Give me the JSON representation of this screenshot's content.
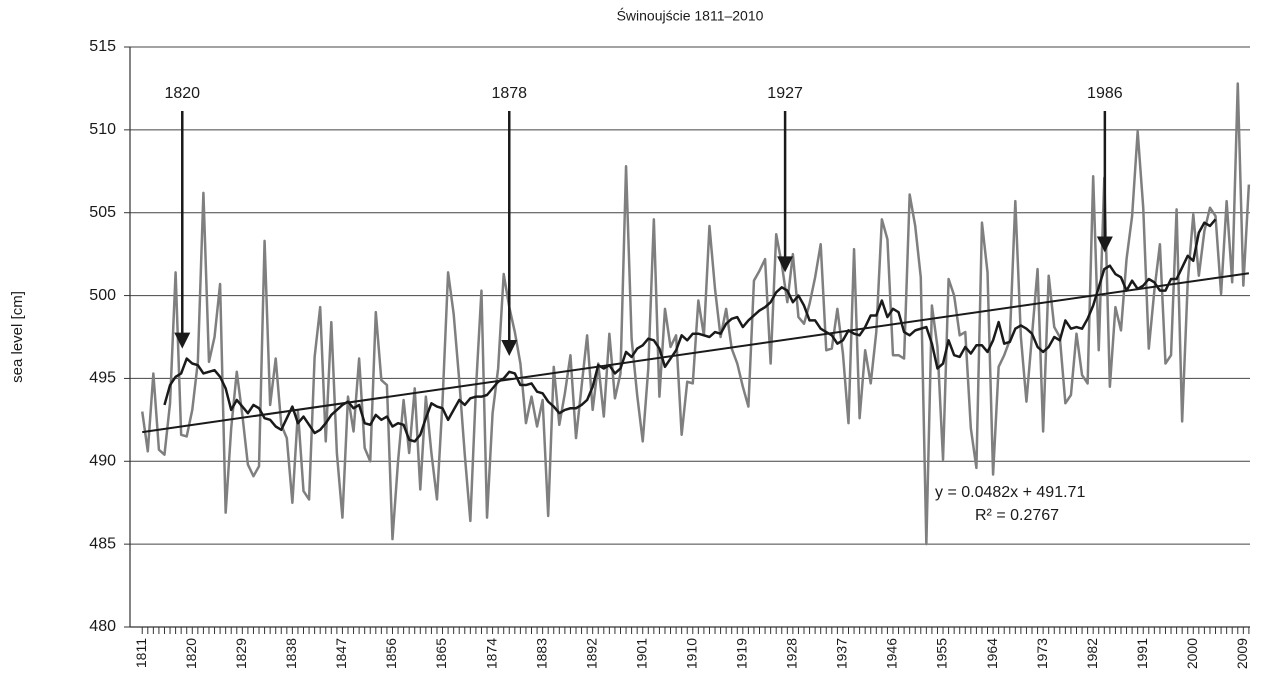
{
  "chart_data": {
    "type": "line",
    "title": "Świnoujście 1811–2010",
    "y_label": "sea level [cm]",
    "x": [
      1811,
      1812,
      1813,
      1814,
      1815,
      1816,
      1817,
      1818,
      1819,
      1820,
      1821,
      1822,
      1823,
      1824,
      1825,
      1826,
      1827,
      1828,
      1829,
      1830,
      1831,
      1832,
      1833,
      1834,
      1835,
      1836,
      1837,
      1838,
      1839,
      1840,
      1841,
      1842,
      1843,
      1844,
      1845,
      1846,
      1847,
      1848,
      1849,
      1850,
      1851,
      1852,
      1853,
      1854,
      1855,
      1856,
      1857,
      1858,
      1859,
      1860,
      1861,
      1862,
      1863,
      1864,
      1865,
      1866,
      1867,
      1868,
      1869,
      1870,
      1871,
      1872,
      1873,
      1874,
      1875,
      1876,
      1877,
      1878,
      1879,
      1880,
      1881,
      1882,
      1883,
      1884,
      1885,
      1886,
      1887,
      1888,
      1889,
      1890,
      1891,
      1892,
      1893,
      1894,
      1895,
      1896,
      1897,
      1898,
      1899,
      1900,
      1901,
      1902,
      1903,
      1904,
      1905,
      1906,
      1907,
      1908,
      1909,
      1910,
      1911,
      1912,
      1913,
      1914,
      1915,
      1916,
      1917,
      1918,
      1919,
      1920,
      1921,
      1922,
      1923,
      1924,
      1925,
      1926,
      1927,
      1928,
      1929,
      1930,
      1931,
      1932,
      1933,
      1934,
      1935,
      1936,
      1937,
      1938,
      1939,
      1940,
      1941,
      1942,
      1943,
      1944,
      1945,
      1946,
      1947,
      1948,
      1949,
      1950,
      1951,
      1952,
      1953,
      1954,
      1955,
      1956,
      1957,
      1958,
      1959,
      1960,
      1961,
      1962,
      1963,
      1964,
      1965,
      1966,
      1967,
      1968,
      1969,
      1970,
      1971,
      1972,
      1973,
      1974,
      1975,
      1976,
      1977,
      1978,
      1979,
      1980,
      1981,
      1982,
      1983,
      1984,
      1985,
      1986,
      1987,
      1988,
      1989,
      1990,
      1991,
      1992,
      1993,
      1994,
      1995,
      1996,
      1997,
      1998,
      1999,
      2000,
      2001,
      2002,
      2003,
      2004,
      2005,
      2006,
      2007,
      2008,
      2009,
      2010
    ],
    "series": [
      {
        "color": "#7f7f7f",
        "width": 2.5,
        "values": [
          493,
          490.6,
          495.3,
          490.7,
          490.4,
          493.5,
          501.4,
          491.6,
          491.5,
          493.1,
          496,
          506.2,
          496,
          497.5,
          500.7,
          486.9,
          492,
          495.4,
          492.8,
          489.8,
          489.1,
          489.7,
          503.3,
          493.4,
          496.2,
          492.2,
          491.4,
          487.5,
          493,
          488.2,
          487.7,
          496.3,
          499.3,
          491.2,
          498.4,
          490.5,
          486.6,
          493.9,
          491.8,
          496.2,
          490.8,
          490,
          499,
          494.9,
          494.6,
          485.3,
          490,
          493.7,
          490.5,
          494.4,
          488.3,
          493.9,
          490.5,
          487.7,
          493.6,
          501.4,
          498.9,
          494.9,
          490.4,
          486.4,
          494.3,
          500.3,
          486.6,
          492.9,
          495.6,
          501.3,
          499.3,
          497.8,
          495.9,
          492.3,
          493.9,
          492.1,
          493.7,
          486.7,
          495.7,
          492.2,
          494.1,
          496.4,
          491.4,
          494.5,
          497.6,
          493.1,
          495.9,
          492.7,
          497.7,
          493.8,
          495.3,
          507.8,
          497.4,
          494,
          491.2,
          495.6,
          504.6,
          493.9,
          499.2,
          496.9,
          497.6,
          491.6,
          494.8,
          494.7,
          499.7,
          497.6,
          504.2,
          500.4,
          497.5,
          499.2,
          496.8,
          495.9,
          494.5,
          493.3,
          500.9,
          501.5,
          502.2,
          495.9,
          503.7,
          501.9,
          499.6,
          502.5,
          498.7,
          498.3,
          499.5,
          501.1,
          503.1,
          496.7,
          496.8,
          499.2,
          496.5,
          492.3,
          502.8,
          492.6,
          496.7,
          494.7,
          497.8,
          504.6,
          503.4,
          496.4,
          496.4,
          496.2,
          506.1,
          504.2,
          501.1,
          485,
          499.4,
          496.9,
          490.1,
          501,
          500,
          497.6,
          497.8,
          492,
          489.6,
          504.4,
          501.4,
          489.2,
          495.7,
          496.4,
          497.3,
          505.7,
          497.5,
          493.6,
          497.6,
          501.6,
          491.8,
          501.2,
          498.1,
          497.5,
          493.5,
          494,
          497.7,
          495.2,
          494.7,
          507.2,
          496.7,
          507.1,
          494.5,
          499.3,
          497.9,
          502.2,
          504.8,
          509.9,
          505.3,
          496.8,
          500.3,
          503.1,
          495.9,
          496.4,
          505.2,
          492.4,
          500.8,
          504.9,
          501.2,
          503.9,
          505.3,
          504.8,
          500.1,
          505.7,
          500.8,
          512.8,
          500.6,
          506.7
        ]
      },
      {
        "color": "#1a1a1a",
        "width": 2.5,
        "values": [
          null,
          null,
          null,
          null,
          493.4,
          494.6,
          495.1,
          495.3,
          496.2,
          495.9,
          495.8,
          495.3,
          495.4,
          495.5,
          495.1,
          494.4,
          493.1,
          493.7,
          493.3,
          492.9,
          493.4,
          493.2,
          492.6,
          492.5,
          492.1,
          491.9,
          492.6,
          493.3,
          492.3,
          492.7,
          492.2,
          491.7,
          491.9,
          492.3,
          492.8,
          493.1,
          493.4,
          493.6,
          493.2,
          493.4,
          492.3,
          492.2,
          492.8,
          492.5,
          492.7,
          492.1,
          492.3,
          492.2,
          491.3,
          491.2,
          491.6,
          492.6,
          493.5,
          493.3,
          493.2,
          492.5,
          493.1,
          493.7,
          493.4,
          493.8,
          493.9,
          493.9,
          494,
          494.4,
          494.8,
          495,
          495.4,
          495.3,
          494.6,
          494.6,
          494.7,
          494.2,
          494.1,
          493.6,
          493.3,
          492.9,
          493.1,
          493.2,
          493.2,
          493.4,
          493.7,
          494.5,
          495.8,
          495.6,
          495.8,
          495.3,
          495.6,
          496.6,
          496.3,
          496.8,
          497,
          497.4,
          497.3,
          496.8,
          495.7,
          496.2,
          496.7,
          497.6,
          497.3,
          497.7,
          497.7,
          497.6,
          497.5,
          497.8,
          497.7,
          498.3,
          498.6,
          498.7,
          498.1,
          498.5,
          498.8,
          499.1,
          499.3,
          499.6,
          500.2,
          500.5,
          500.3,
          499.6,
          500,
          499.4,
          498.5,
          498.5,
          498,
          497.8,
          497.6,
          497.1,
          497.3,
          497.9,
          497.7,
          497.6,
          498.1,
          498.8,
          498.8,
          499.7,
          498.7,
          499.2,
          499,
          497.8,
          497.6,
          497.9,
          498,
          498.1,
          497.1,
          495.6,
          495.9,
          497.3,
          496.4,
          496.3,
          496.9,
          496.5,
          497,
          497,
          496.6,
          497.3,
          498.4,
          497.1,
          497.2,
          498,
          498.2,
          498,
          497.7,
          496.9,
          496.6,
          496.9,
          497.5,
          497.3,
          498.5,
          498,
          498.1,
          498,
          498.6,
          499.4,
          500.5,
          501.6,
          501.8,
          501.3,
          501.1,
          500.3,
          500.9,
          500.4,
          500.6,
          501,
          500.8,
          500.3,
          500.3,
          501,
          501,
          501.7,
          502.4,
          502.1,
          503.8,
          504.4,
          504.2,
          504.6,
          null,
          null,
          null,
          null,
          null,
          null
        ]
      }
    ],
    "trend": {
      "x": [
        1811,
        2010
      ],
      "values": [
        491.76,
        501.35
      ],
      "color": "#1a1a1a"
    },
    "equation": "y = 0.0482x + 491.71",
    "r_squared": "R² = 0.2767",
    "annotations": [
      {
        "text": "1820",
        "x": 1818.2,
        "y": 496.8
      },
      {
        "text": "1878",
        "x": 1877,
        "y": 496.35
      },
      {
        "text": "1927",
        "x": 1926.6,
        "y": 501.4
      },
      {
        "text": "1986",
        "x": 1984.1,
        "y": 502.6
      }
    ],
    "xlim": [
      1808.8,
      2010.2
    ],
    "xticks": [
      1811,
      1820,
      1829,
      1838,
      1847,
      1856,
      1865,
      1874,
      1883,
      1892,
      1901,
      1910,
      1919,
      1928,
      1937,
      1946,
      1955,
      1964,
      1973,
      1982,
      1991,
      2000,
      2009
    ],
    "ylim": [
      480,
      515
    ],
    "yticks": [
      480,
      485,
      490,
      495,
      500,
      505,
      510,
      515
    ],
    "grid": true
  }
}
